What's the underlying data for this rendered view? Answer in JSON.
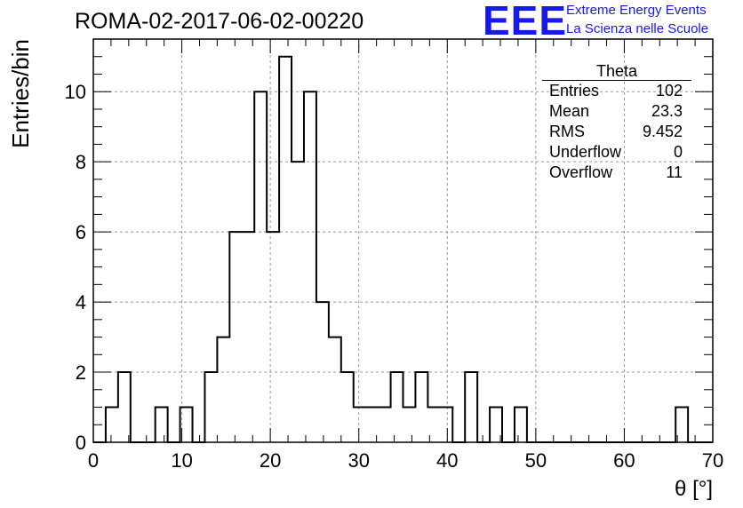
{
  "header": {
    "run_title": "ROMA-02-2017-06-02-00220",
    "logo_text": "EEE",
    "logo_line1": "Extreme Energy Events",
    "logo_line2": "La Scienza nelle Scuole"
  },
  "stats": {
    "title": "Theta",
    "rows": [
      {
        "label": "Entries",
        "value": "102"
      },
      {
        "label": "Mean",
        "value": "23.3"
      },
      {
        "label": "RMS",
        "value": "9.452"
      },
      {
        "label": "Underflow",
        "value": "0"
      },
      {
        "label": "Overflow",
        "value": "11"
      }
    ]
  },
  "chart_data": {
    "type": "bar",
    "histogram": true,
    "xlabel": "θ [°]",
    "ylabel": "Entries/bin",
    "xlim": [
      0,
      70
    ],
    "ylim": [
      0,
      11.5
    ],
    "bin_width": 1.4,
    "bin_edges_start": 0,
    "values": [
      0,
      1,
      2,
      0,
      0,
      1,
      0,
      1,
      0,
      2,
      3,
      6,
      6,
      10,
      6,
      11,
      8,
      10,
      4,
      3,
      2,
      1,
      1,
      1,
      2,
      1,
      2,
      1,
      1,
      0,
      2,
      0,
      1,
      0,
      1,
      0,
      0,
      0,
      0,
      0,
      0,
      0,
      0,
      0,
      0,
      0,
      0,
      1,
      0,
      0
    ],
    "xticks": [
      0,
      10,
      20,
      30,
      40,
      50,
      60,
      70
    ],
    "xtick_labels": [
      "0",
      "10",
      "20",
      "30",
      "40",
      "50",
      "60",
      "70"
    ],
    "yticks": [
      0,
      2,
      4,
      6,
      8,
      10
    ],
    "ytick_labels": [
      "0",
      "2",
      "4",
      "6",
      "8",
      "10"
    ],
    "grid": true,
    "line_color": "#000000",
    "grid_color": "#999999"
  }
}
